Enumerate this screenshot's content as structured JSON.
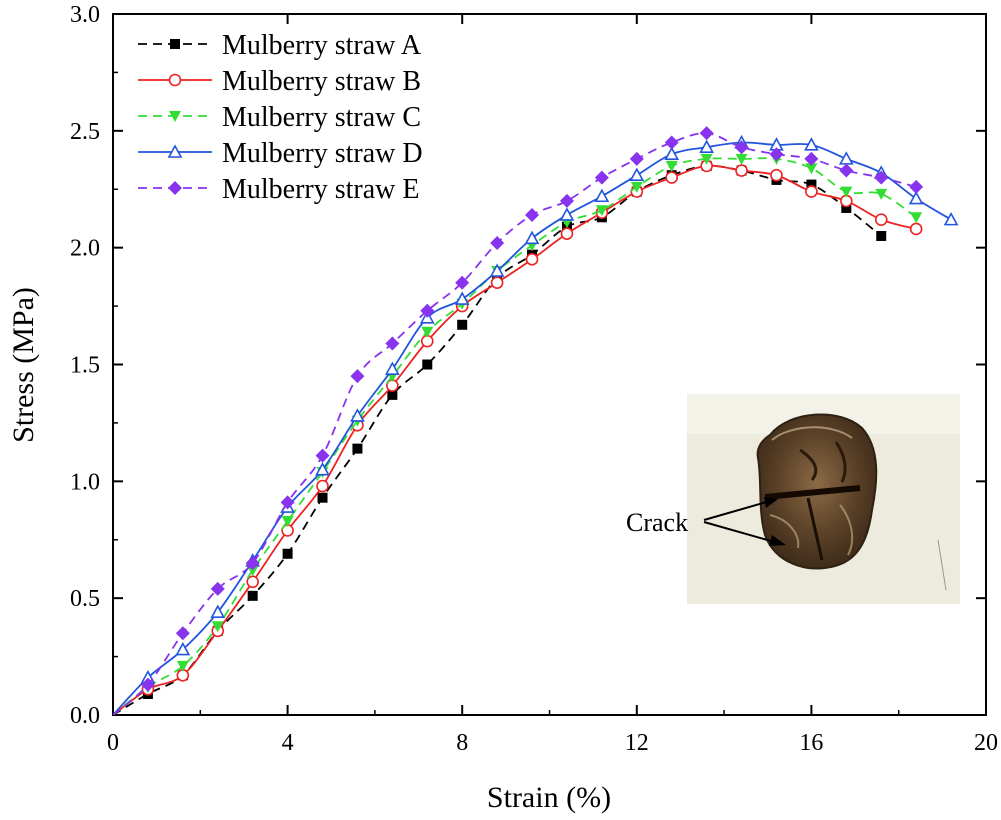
{
  "chart_data": {
    "type": "line",
    "title": "",
    "xlabel": "Strain (%)",
    "ylabel": "Stress (MPa)",
    "xlim": [
      0,
      20
    ],
    "ylim": [
      0,
      3.0
    ],
    "x_ticks": [
      "0",
      "4",
      "8",
      "12",
      "16",
      "20"
    ],
    "y_ticks": [
      "0.0",
      "0.5",
      "1.0",
      "1.5",
      "2.0",
      "2.5",
      "3.0"
    ],
    "grid": false,
    "legend_position": "top-left",
    "series": [
      {
        "name": "Mulberry straw A",
        "color": "#000000",
        "dash": "dashed",
        "marker": "square",
        "x": [
          0,
          0.8,
          1.6,
          2.4,
          3.2,
          4.0,
          4.8,
          5.6,
          6.4,
          7.2,
          8.0,
          8.8,
          9.6,
          10.4,
          11.2,
          12.0,
          12.8,
          13.6,
          14.4,
          15.2,
          16.0,
          16.8,
          17.6
        ],
        "y": [
          0,
          0.09,
          0.17,
          0.36,
          0.51,
          0.69,
          0.93,
          1.14,
          1.37,
          1.5,
          1.67,
          1.87,
          1.97,
          2.09,
          2.13,
          2.24,
          2.31,
          2.35,
          2.33,
          2.29,
          2.27,
          2.17,
          2.05
        ]
      },
      {
        "name": "Mulberry straw B",
        "color": "#ee2222",
        "dash": "solid",
        "marker": "circle-open",
        "x": [
          0,
          0.8,
          1.6,
          2.4,
          3.2,
          4.0,
          4.8,
          5.6,
          6.4,
          7.2,
          8.0,
          8.8,
          9.6,
          10.4,
          11.2,
          12.0,
          12.8,
          13.6,
          14.4,
          15.2,
          16.0,
          16.8,
          17.6,
          18.4
        ],
        "y": [
          0,
          0.11,
          0.17,
          0.36,
          0.57,
          0.79,
          0.98,
          1.24,
          1.41,
          1.6,
          1.75,
          1.85,
          1.95,
          2.06,
          2.15,
          2.24,
          2.3,
          2.35,
          2.33,
          2.31,
          2.24,
          2.2,
          2.12,
          2.08
        ]
      },
      {
        "name": "Mulberry straw C",
        "color": "#33dd33",
        "dash": "dashed",
        "marker": "triangle-down",
        "x": [
          0,
          0.8,
          1.6,
          2.4,
          3.2,
          4.0,
          4.8,
          5.6,
          6.4,
          7.2,
          8.0,
          8.8,
          9.6,
          10.4,
          11.2,
          12.0,
          12.8,
          13.6,
          14.4,
          15.2,
          16.0,
          16.8,
          17.6,
          18.4
        ],
        "y": [
          0,
          0.12,
          0.21,
          0.38,
          0.62,
          0.83,
          1.04,
          1.26,
          1.45,
          1.64,
          1.76,
          1.9,
          2.01,
          2.11,
          2.16,
          2.26,
          2.35,
          2.38,
          2.38,
          2.38,
          2.34,
          2.24,
          2.23,
          2.13
        ]
      },
      {
        "name": "Mulberry straw D",
        "color": "#2255dd",
        "dash": "solid",
        "marker": "triangle-up-open",
        "x": [
          0,
          0.8,
          1.6,
          2.4,
          3.2,
          4.0,
          4.8,
          5.6,
          6.4,
          7.2,
          8.0,
          8.8,
          9.6,
          10.4,
          11.2,
          12.0,
          12.8,
          13.6,
          14.4,
          15.2,
          16.0,
          16.8,
          17.6,
          18.4,
          19.2
        ],
        "y": [
          0,
          0.16,
          0.28,
          0.44,
          0.66,
          0.89,
          1.05,
          1.28,
          1.48,
          1.7,
          1.78,
          1.9,
          2.04,
          2.14,
          2.22,
          2.31,
          2.4,
          2.43,
          2.45,
          2.44,
          2.44,
          2.38,
          2.32,
          2.21,
          2.12
        ]
      },
      {
        "name": "Mulberry straw E",
        "color": "#8833ee",
        "dash": "dashed",
        "marker": "diamond",
        "x": [
          0,
          0.8,
          1.6,
          2.4,
          3.2,
          4.0,
          4.8,
          5.6,
          6.4,
          7.2,
          8.0,
          8.8,
          9.6,
          10.4,
          11.2,
          12.0,
          12.8,
          13.6,
          14.4,
          15.2,
          16.0,
          16.8,
          17.6,
          18.4
        ],
        "y": [
          0,
          0.13,
          0.35,
          0.54,
          0.65,
          0.91,
          1.11,
          1.45,
          1.59,
          1.73,
          1.85,
          2.02,
          2.14,
          2.2,
          2.3,
          2.38,
          2.45,
          2.49,
          2.43,
          2.4,
          2.38,
          2.33,
          2.3,
          2.26
        ]
      }
    ],
    "annotations": [
      {
        "text": "Crack"
      }
    ]
  }
}
